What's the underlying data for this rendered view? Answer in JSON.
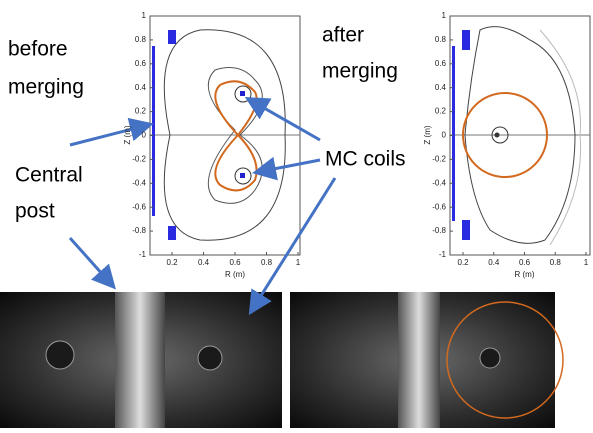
{
  "labels": {
    "before": "before",
    "before2": "merging",
    "after": "after",
    "after2": "merging",
    "mc_coils": "MC coils",
    "central": "Central",
    "post": "post"
  },
  "plots": [
    {
      "yticks": [
        1,
        0.8,
        0.6,
        0.4,
        0.2,
        0,
        -0.2,
        -0.4,
        -0.6,
        -0.8,
        -1
      ],
      "xticks": [
        0.2,
        0.4,
        0.6,
        0.8,
        1
      ],
      "xlabel": "R (m)",
      "ylabel": "Z (m)"
    },
    {
      "yticks": [
        1,
        0.8,
        0.6,
        0.4,
        0.2,
        0,
        -0.2,
        -0.4,
        -0.6,
        -0.8,
        -1
      ],
      "xticks": [
        0.2,
        0.4,
        0.6,
        0.8,
        1
      ],
      "xlabel": "R (m)",
      "ylabel": "Z (m)"
    }
  ]
}
